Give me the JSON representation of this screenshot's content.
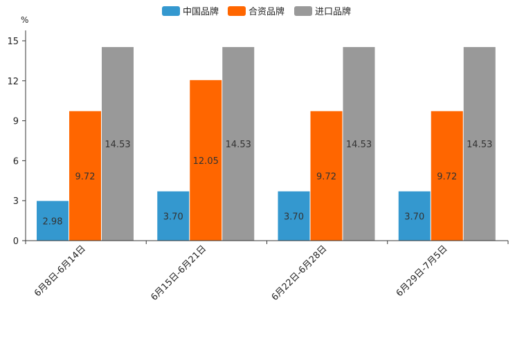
{
  "chart_data": {
    "type": "bar",
    "unit_label": "%",
    "categories": [
      "6月8日-6月14日",
      "6月15日-6月21日",
      "6月22日-6月28日",
      "6月29日-7月5日"
    ],
    "series": [
      {
        "name": "中国品牌",
        "color": "#3498cf",
        "values": [
          2.98,
          3.7,
          3.7,
          3.7
        ]
      },
      {
        "name": "合资品牌",
        "color": "#ff6600",
        "values": [
          9.72,
          12.05,
          9.72,
          9.72
        ]
      },
      {
        "name": "进口品牌",
        "color": "#999999",
        "values": [
          14.53,
          14.53,
          14.53,
          14.53
        ]
      }
    ],
    "ylim": [
      0,
      15
    ],
    "yticks": [
      0,
      3,
      6,
      9,
      12,
      15
    ],
    "legend_position": "top",
    "grid": false
  }
}
